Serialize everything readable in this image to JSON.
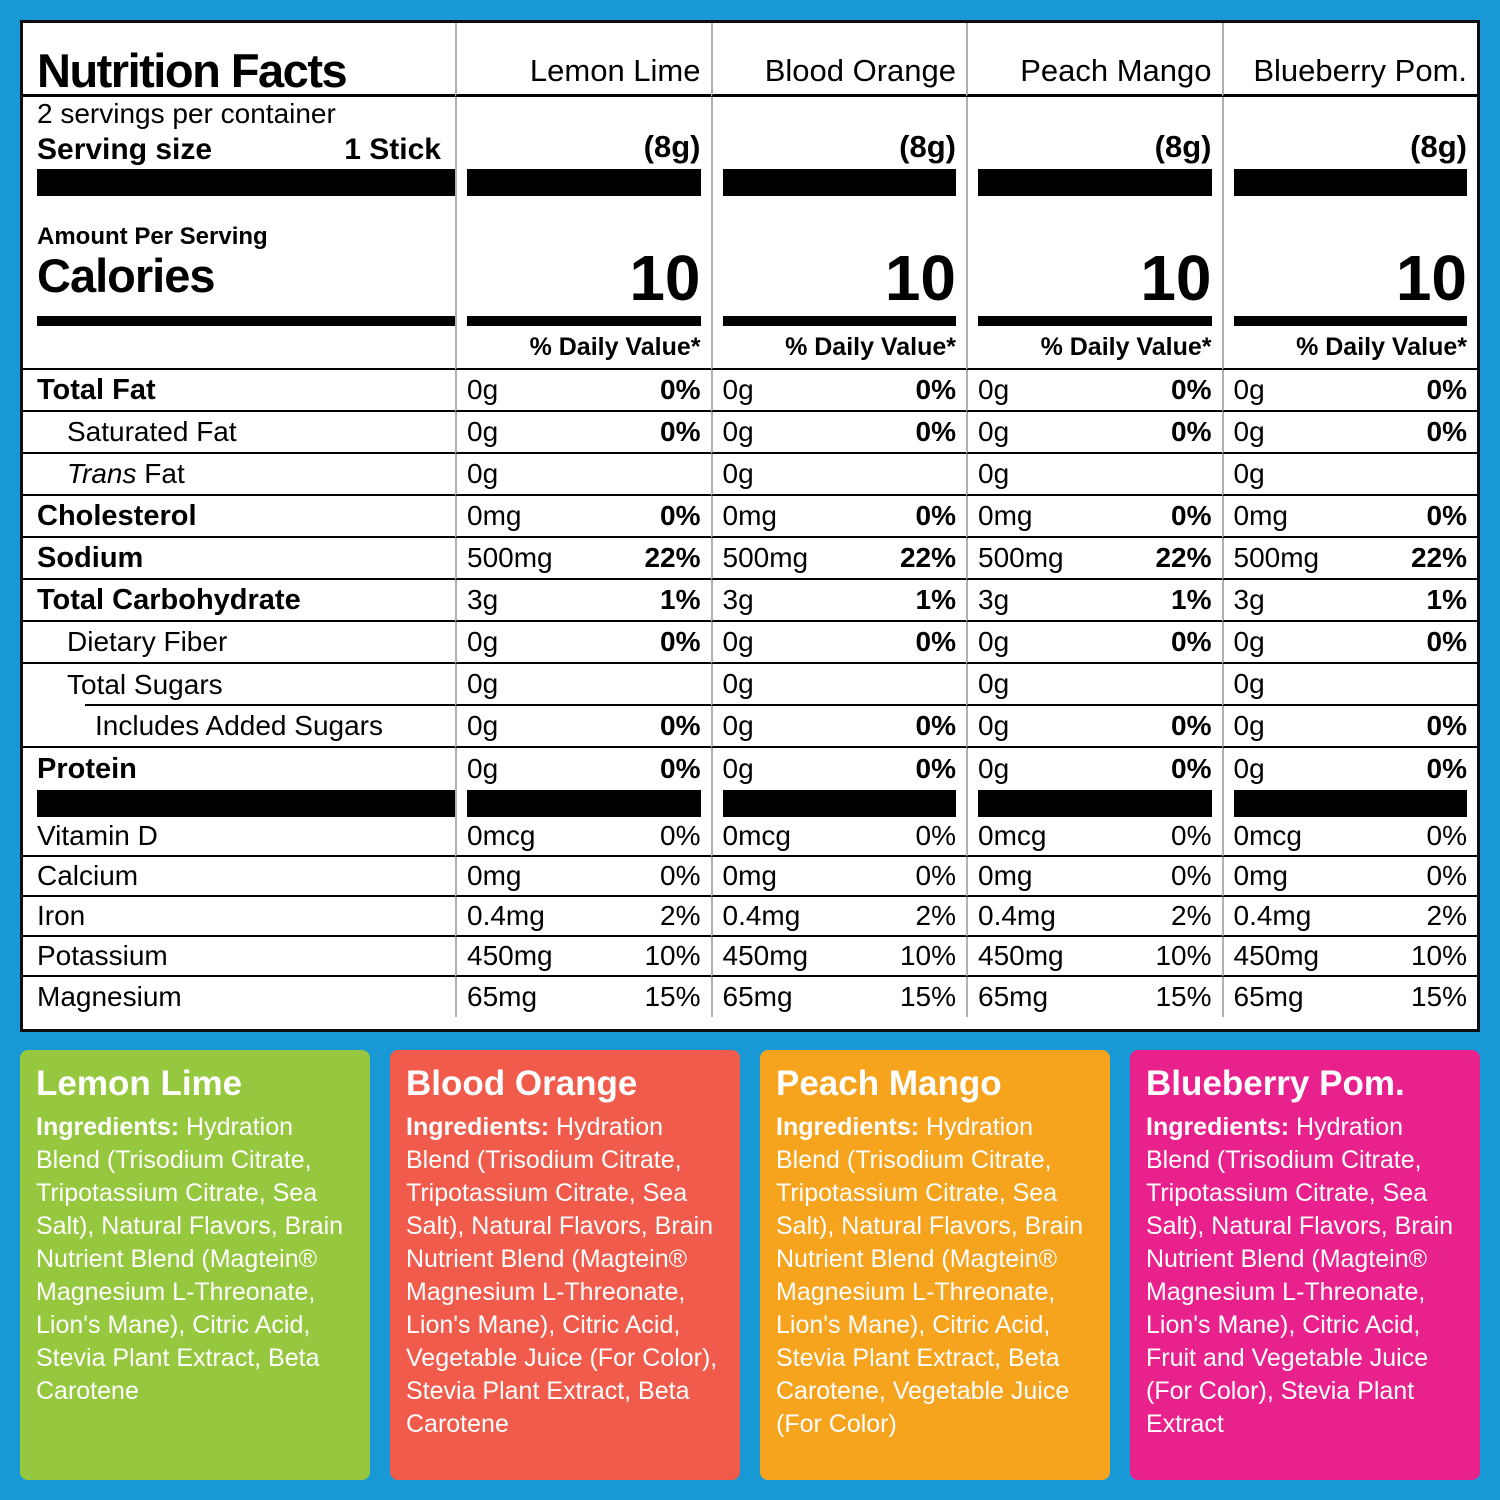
{
  "colors": {
    "background": "#1899D6",
    "panel_bg": "#FFFFFF",
    "panel_border": "#0D0D0D",
    "separator": "#B0B0B0"
  },
  "panel": {
    "title": "Nutrition Facts",
    "servings_per_container": "2 servings per container",
    "serving_size_label": "Serving size",
    "serving_size_value": "1 Stick",
    "serving_weight": "(8g)",
    "amount_per_serving": "Amount Per Serving",
    "calories_label": "Calories",
    "calories_value": "10",
    "daily_value_header": "% Daily Value*",
    "columns": [
      "Lemon Lime",
      "Blood Orange",
      "Peach Mango",
      "Blueberry Pom."
    ],
    "nutrients": [
      {
        "label": "Total Fat",
        "bold": true,
        "indent": 0,
        "amount": "0g",
        "dv": "0%"
      },
      {
        "label": "Saturated Fat",
        "bold": false,
        "indent": 1,
        "amount": "0g",
        "dv": "0%"
      },
      {
        "label": "Trans Fat",
        "italic_prefix": "Trans",
        "label_rest": " Fat",
        "bold": false,
        "indent": 1,
        "amount": "0g",
        "dv": ""
      },
      {
        "label": "Cholesterol",
        "bold": true,
        "indent": 0,
        "amount": "0mg",
        "dv": "0%"
      },
      {
        "label": "Sodium",
        "bold": true,
        "indent": 0,
        "amount": "500mg",
        "dv": "22%"
      },
      {
        "label": "Total Carbohydrate",
        "bold": true,
        "indent": 0,
        "amount": "3g",
        "dv": "1%"
      },
      {
        "label": "Dietary Fiber",
        "bold": false,
        "indent": 1,
        "amount": "0g",
        "dv": "0%"
      },
      {
        "label": "Total Sugars",
        "bold": false,
        "indent": 1,
        "amount": "0g",
        "dv": ""
      },
      {
        "label": "Includes Added Sugars",
        "bold": false,
        "indent": 2,
        "amount": "0g",
        "dv": "0%"
      },
      {
        "label": "Protein",
        "bold": true,
        "indent": 0,
        "amount": "0g",
        "dv": "0%"
      }
    ],
    "vitamins": [
      {
        "label": "Vitamin D",
        "amount": "0mcg",
        "dv": "0%"
      },
      {
        "label": "Calcium",
        "amount": "0mg",
        "dv": "0%"
      },
      {
        "label": "Iron",
        "amount": "0.4mg",
        "dv": "2%"
      },
      {
        "label": "Potassium",
        "amount": "450mg",
        "dv": "10%"
      },
      {
        "label": "Magnesium",
        "amount": "65mg",
        "dv": "15%"
      }
    ]
  },
  "flavors": [
    {
      "name": "Lemon Lime",
      "color": "#95C83E",
      "ingredients_label": "Ingredients:",
      "ingredients": " Hydration Blend (Trisodium Citrate, Tripotassium Citrate, Sea Salt), Natural Flavors, Brain Nutrient Blend (Magtein® Magnesium L-Threonate, Lion's Mane), Citric Acid, Stevia Plant Extract, Beta Carotene"
    },
    {
      "name": "Blood Orange",
      "color": "#F05B4C",
      "ingredients_label": "Ingredients:",
      "ingredients": " Hydration Blend (Trisodium Citrate, Tripotassium Citrate, Sea Salt), Natural Flavors, Brain Nutrient Blend (Magtein® Magnesium L-Threonate, Lion's Mane), Citric Acid, Vegetable Juice (For Color), Stevia Plant Extract, Beta Carotene"
    },
    {
      "name": "Peach Mango",
      "color": "#F6A31E",
      "ingredients_label": "Ingredients:",
      "ingredients": " Hydration Blend (Trisodium Citrate, Tripotassium Citrate, Sea Salt), Natural Flavors, Brain Nutrient Blend (Magtein® Magnesium L-Threonate, Lion's Mane), Citric Acid, Stevia Plant Extract, Beta Carotene, Vegetable Juice (For Color)"
    },
    {
      "name": "Blueberry Pom.",
      "color": "#E9218D",
      "ingredients_label": "Ingredients:",
      "ingredients": " Hydration Blend (Trisodium Citrate, Tripotassium Citrate, Sea Salt), Natural Flavors, Brain Nutrient Blend (Magtein® Magnesium L-Threonate, Lion's Mane), Citric Acid, Fruit and Vegetable Juice (For Color), Stevia Plant Extract"
    }
  ]
}
